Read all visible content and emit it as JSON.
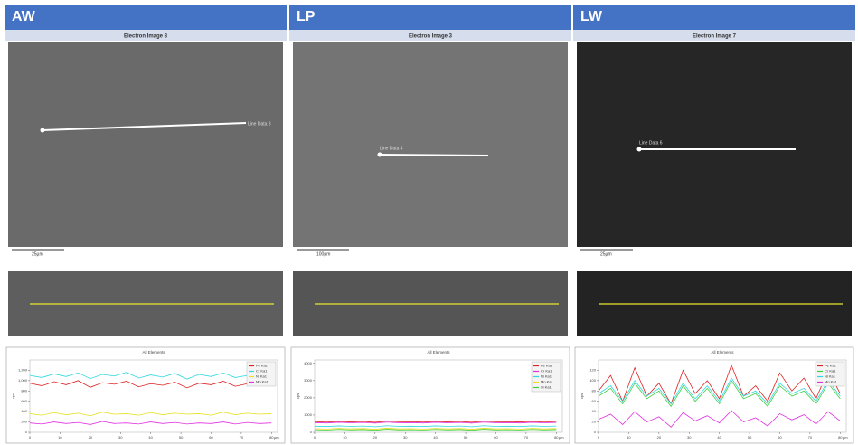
{
  "panels": [
    {
      "header": "AW",
      "image_title": "Electron Image 8",
      "line_label": "Line Data 8",
      "scale_label": "25µm"
    },
    {
      "header": "LP",
      "image_title": "Electron Image 3",
      "line_label": "Line Data 4",
      "scale_label": "100µm"
    },
    {
      "header": "LW",
      "image_title": "Electron Image 7",
      "line_label": "Line Data 6",
      "scale_label": "25µm"
    }
  ],
  "chart_data": [
    {
      "type": "line",
      "title": "All Elements",
      "x_label": "µm",
      "y_label": "cps",
      "x": [
        0,
        4,
        8,
        12,
        16,
        20,
        24,
        28,
        32,
        36,
        40,
        44,
        48,
        52,
        56,
        60,
        64,
        68,
        72,
        76,
        80
      ],
      "xlim": [
        0,
        82
      ],
      "xticks": [
        0,
        10,
        20,
        30,
        40,
        50,
        60,
        70,
        80
      ],
      "ylim": [
        0,
        1400
      ],
      "yticks": [
        0,
        200,
        400,
        600,
        800,
        {
          "value": 1000,
          "label": "1,000"
        },
        {
          "value": 1200,
          "label": "1,200"
        }
      ],
      "legend": "upper right",
      "series": [
        {
          "name": "Fe Ka1",
          "color": "#e02020",
          "values": [
            950,
            900,
            980,
            920,
            1000,
            870,
            960,
            930,
            990,
            880,
            940,
            910,
            970,
            860,
            950,
            920,
            990,
            890,
            940,
            960,
            930
          ]
        },
        {
          "name": "Cr Ka1",
          "color": "#30d8e0",
          "values": [
            1100,
            1060,
            1130,
            1080,
            1150,
            1040,
            1120,
            1090,
            1160,
            1050,
            1110,
            1070,
            1140,
            1030,
            1120,
            1080,
            1150,
            1060,
            1100,
            1130,
            1090
          ]
        },
        {
          "name": "Ni Ka1",
          "color": "#e8e020",
          "values": [
            360,
            330,
            380,
            340,
            370,
            320,
            390,
            350,
            360,
            330,
            380,
            340,
            370,
            350,
            360,
            330,
            390,
            340,
            370,
            350,
            360
          ]
        },
        {
          "name": "Mn Ka1",
          "color": "#e030e0",
          "values": [
            180,
            160,
            200,
            170,
            190,
            150,
            210,
            170,
            180,
            160,
            200,
            170,
            190,
            160,
            180,
            170,
            200,
            160,
            190,
            170,
            180
          ]
        }
      ]
    },
    {
      "type": "line",
      "title": "All Elements",
      "x_label": "µm",
      "y_label": "cps",
      "x": [
        0,
        4,
        8,
        12,
        16,
        20,
        24,
        28,
        32,
        36,
        40,
        44,
        48,
        52,
        56,
        60,
        64,
        68,
        72,
        76,
        80
      ],
      "xlim": [
        0,
        82
      ],
      "xticks": [
        0,
        10,
        20,
        30,
        40,
        50,
        60,
        70,
        80
      ],
      "ylim": [
        0,
        4200
      ],
      "yticks": [
        0,
        1000,
        2000,
        3000,
        4000
      ],
      "legend": "upper right",
      "series": [
        {
          "name": "Fe Ka1",
          "color": "#e02020",
          "values": [
            620,
            590,
            640,
            600,
            630,
            580,
            650,
            610,
            620,
            590,
            640,
            600,
            630,
            580,
            650,
            610,
            620,
            600,
            640,
            590,
            630
          ]
        },
        {
          "name": "Cr Ka1",
          "color": "#e030e0",
          "values": [
            560,
            540,
            580,
            550,
            570,
            530,
            590,
            550,
            560,
            540,
            580,
            550,
            570,
            530,
            590,
            550,
            560,
            540,
            580,
            550,
            570
          ]
        },
        {
          "name": "Ni Ka1",
          "color": "#30d8e0",
          "values": [
            350,
            330,
            370,
            340,
            360,
            320,
            380,
            340,
            350,
            330,
            370,
            340,
            360,
            320,
            380,
            340,
            350,
            330,
            370,
            340,
            360
          ]
        },
        {
          "name": "Mn Ka1",
          "color": "#e8e020",
          "values": [
            210,
            190,
            230,
            200,
            220,
            180,
            240,
            200,
            210,
            190,
            230,
            200,
            220,
            180,
            240,
            200,
            210,
            190,
            230,
            200,
            220
          ]
        },
        {
          "name": "Si Ka1",
          "color": "#40d040",
          "values": [
            150,
            130,
            170,
            140,
            160,
            120,
            180,
            140,
            150,
            130,
            170,
            140,
            160,
            120,
            180,
            140,
            150,
            130,
            170,
            140,
            160
          ]
        }
      ]
    },
    {
      "type": "line",
      "title": "All Elements",
      "x_label": "µm",
      "y_label": "cps",
      "x": [
        0,
        4,
        8,
        12,
        16,
        20,
        24,
        28,
        32,
        36,
        40,
        44,
        48,
        52,
        56,
        60,
        64,
        68,
        72,
        76,
        80
      ],
      "xlim": [
        0,
        82
      ],
      "xticks": [
        0,
        10,
        20,
        30,
        40,
        50,
        60,
        70,
        80
      ],
      "ylim": [
        0,
        140
      ],
      "yticks": [
        0,
        20,
        40,
        60,
        80,
        100,
        120
      ],
      "legend": "upper right",
      "series": [
        {
          "name": "Fe Ka1",
          "color": "#e02020",
          "values": [
            80,
            110,
            60,
            125,
            70,
            95,
            55,
            120,
            75,
            100,
            65,
            130,
            70,
            90,
            60,
            115,
            80,
            105,
            65,
            120,
            75
          ]
        },
        {
          "name": "Cr Ka1",
          "color": "#40d040",
          "values": [
            70,
            85,
            55,
            95,
            65,
            80,
            50,
            90,
            60,
            85,
            55,
            100,
            65,
            75,
            50,
            90,
            70,
            80,
            55,
            95,
            65
          ]
        },
        {
          "name": "Ni Ka1",
          "color": "#30d8e0",
          "values": [
            75,
            90,
            60,
            100,
            70,
            85,
            55,
            95,
            65,
            90,
            60,
            105,
            70,
            80,
            55,
            95,
            75,
            85,
            60,
            100,
            70
          ]
        },
        {
          "name": "Mn Ka1",
          "color": "#e030e0",
          "values": [
            25,
            35,
            15,
            40,
            20,
            30,
            10,
            38,
            22,
            32,
            18,
            42,
            20,
            28,
            12,
            36,
            24,
            34,
            16,
            40,
            22
          ]
        }
      ]
    }
  ]
}
